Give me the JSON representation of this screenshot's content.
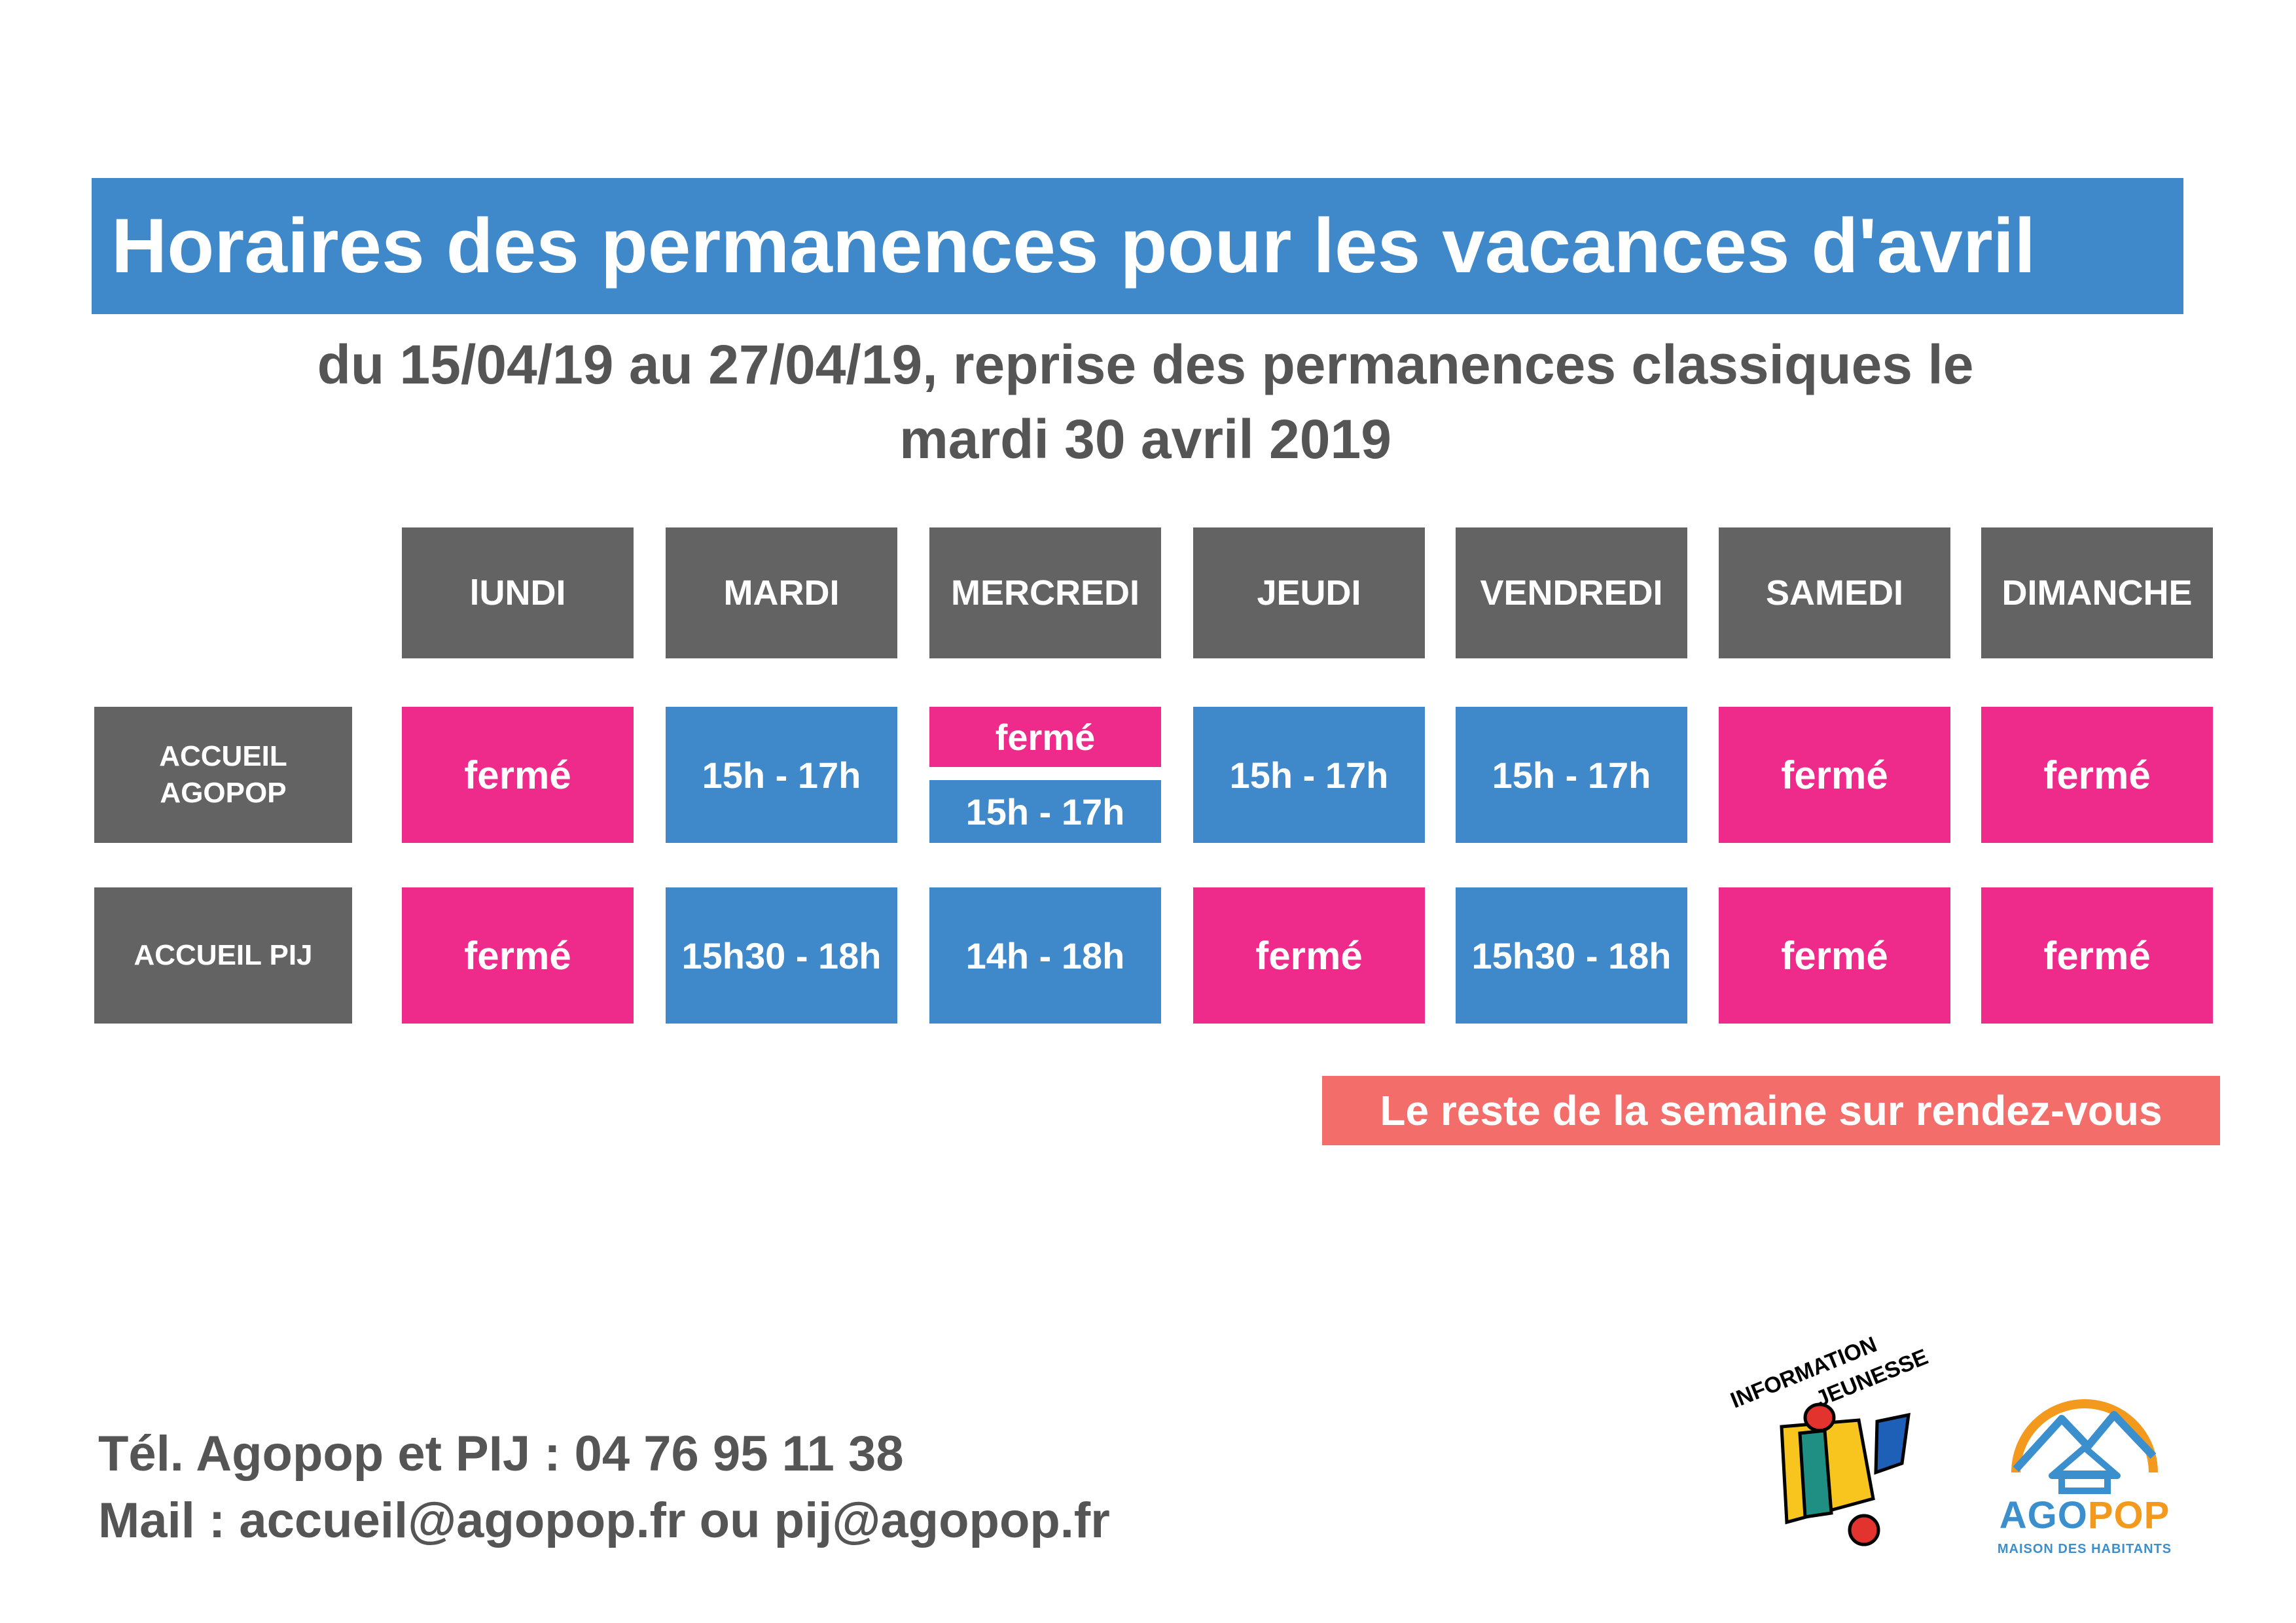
{
  "title": "Horaires des permanences pour les vacances d'avril",
  "subtitle_line1": "du 15/04/19 au 27/04/19, reprise des permanences classiques le",
  "subtitle_line2": "mardi 30 avril 2019",
  "days": [
    "lUNDI",
    "MARDI",
    "MERCREDI",
    "JEUDI",
    "VENDREDI",
    "SAMEDI",
    "DIMANCHE"
  ],
  "rows": [
    {
      "label_line1": "ACCUEIL",
      "label_line2": "AGOPOP",
      "cells": [
        "fermé",
        "15h - 17h",
        "fermé",
        "15h - 17h",
        "15h - 17h",
        "fermé",
        "fermé"
      ],
      "mercredi_split": [
        "fermé",
        "15h - 17h"
      ]
    },
    {
      "label_line1": "ACCUEIL PIJ",
      "cells": [
        "fermé",
        "15h30 - 18h",
        "14h - 18h",
        "fermé",
        "15h30 - 18h",
        "fermé",
        "fermé"
      ]
    }
  ],
  "note": "Le reste de la semaine sur rendez-vous",
  "contact": {
    "phone": "Tél. Agopop et PIJ : 04 76 95 11 38",
    "mail": "Mail : accueil@agopop.fr ou pij@agopop.fr"
  },
  "logo_ij": {
    "line1": "INFORMATION",
    "line2": "JEUNESSE"
  },
  "logo_agopop": {
    "name_part1": "AGO",
    "name_part2": "POP",
    "subtitle": "MAISON DES HABITANTS"
  },
  "colors": {
    "title_bg": "#3f88c9",
    "day_bg": "#636363",
    "open_bg": "#3f88c9",
    "closed_bg": "#ee2a8a",
    "note_bg": "#f36e6a",
    "text_gray": "#555555",
    "agopop_blue": "#3b8fcd",
    "agopop_orange": "#f39a1e"
  }
}
